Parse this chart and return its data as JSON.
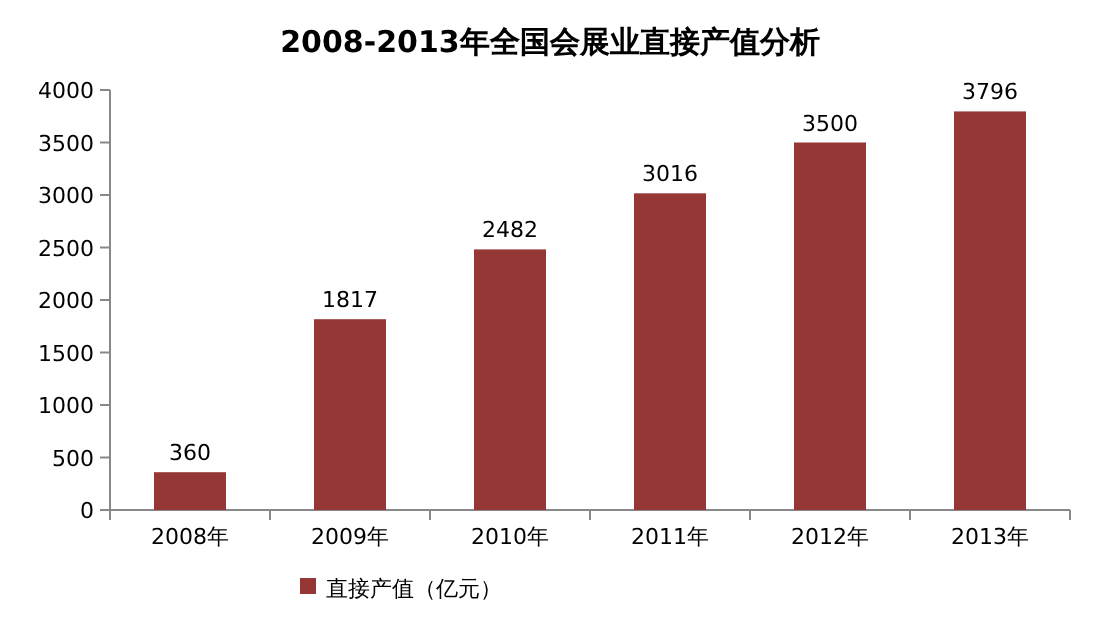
{
  "chart_data": {
    "type": "bar",
    "title": "2008-2013年全国会展业直接产值分析",
    "categories": [
      "2008年",
      "2009年",
      "2010年",
      "2011年",
      "2012年",
      "2013年"
    ],
    "series": [
      {
        "name": "直接产值（亿元）",
        "color": "#953735",
        "values": [
          360,
          1817,
          2482,
          3016,
          3500,
          3796
        ]
      }
    ],
    "ylim": [
      0,
      4000
    ],
    "yticks": [
      0,
      500,
      1000,
      1500,
      2000,
      2500,
      3000,
      3500,
      4000
    ],
    "data_labels": true,
    "legend": "bottom",
    "grid": false
  }
}
